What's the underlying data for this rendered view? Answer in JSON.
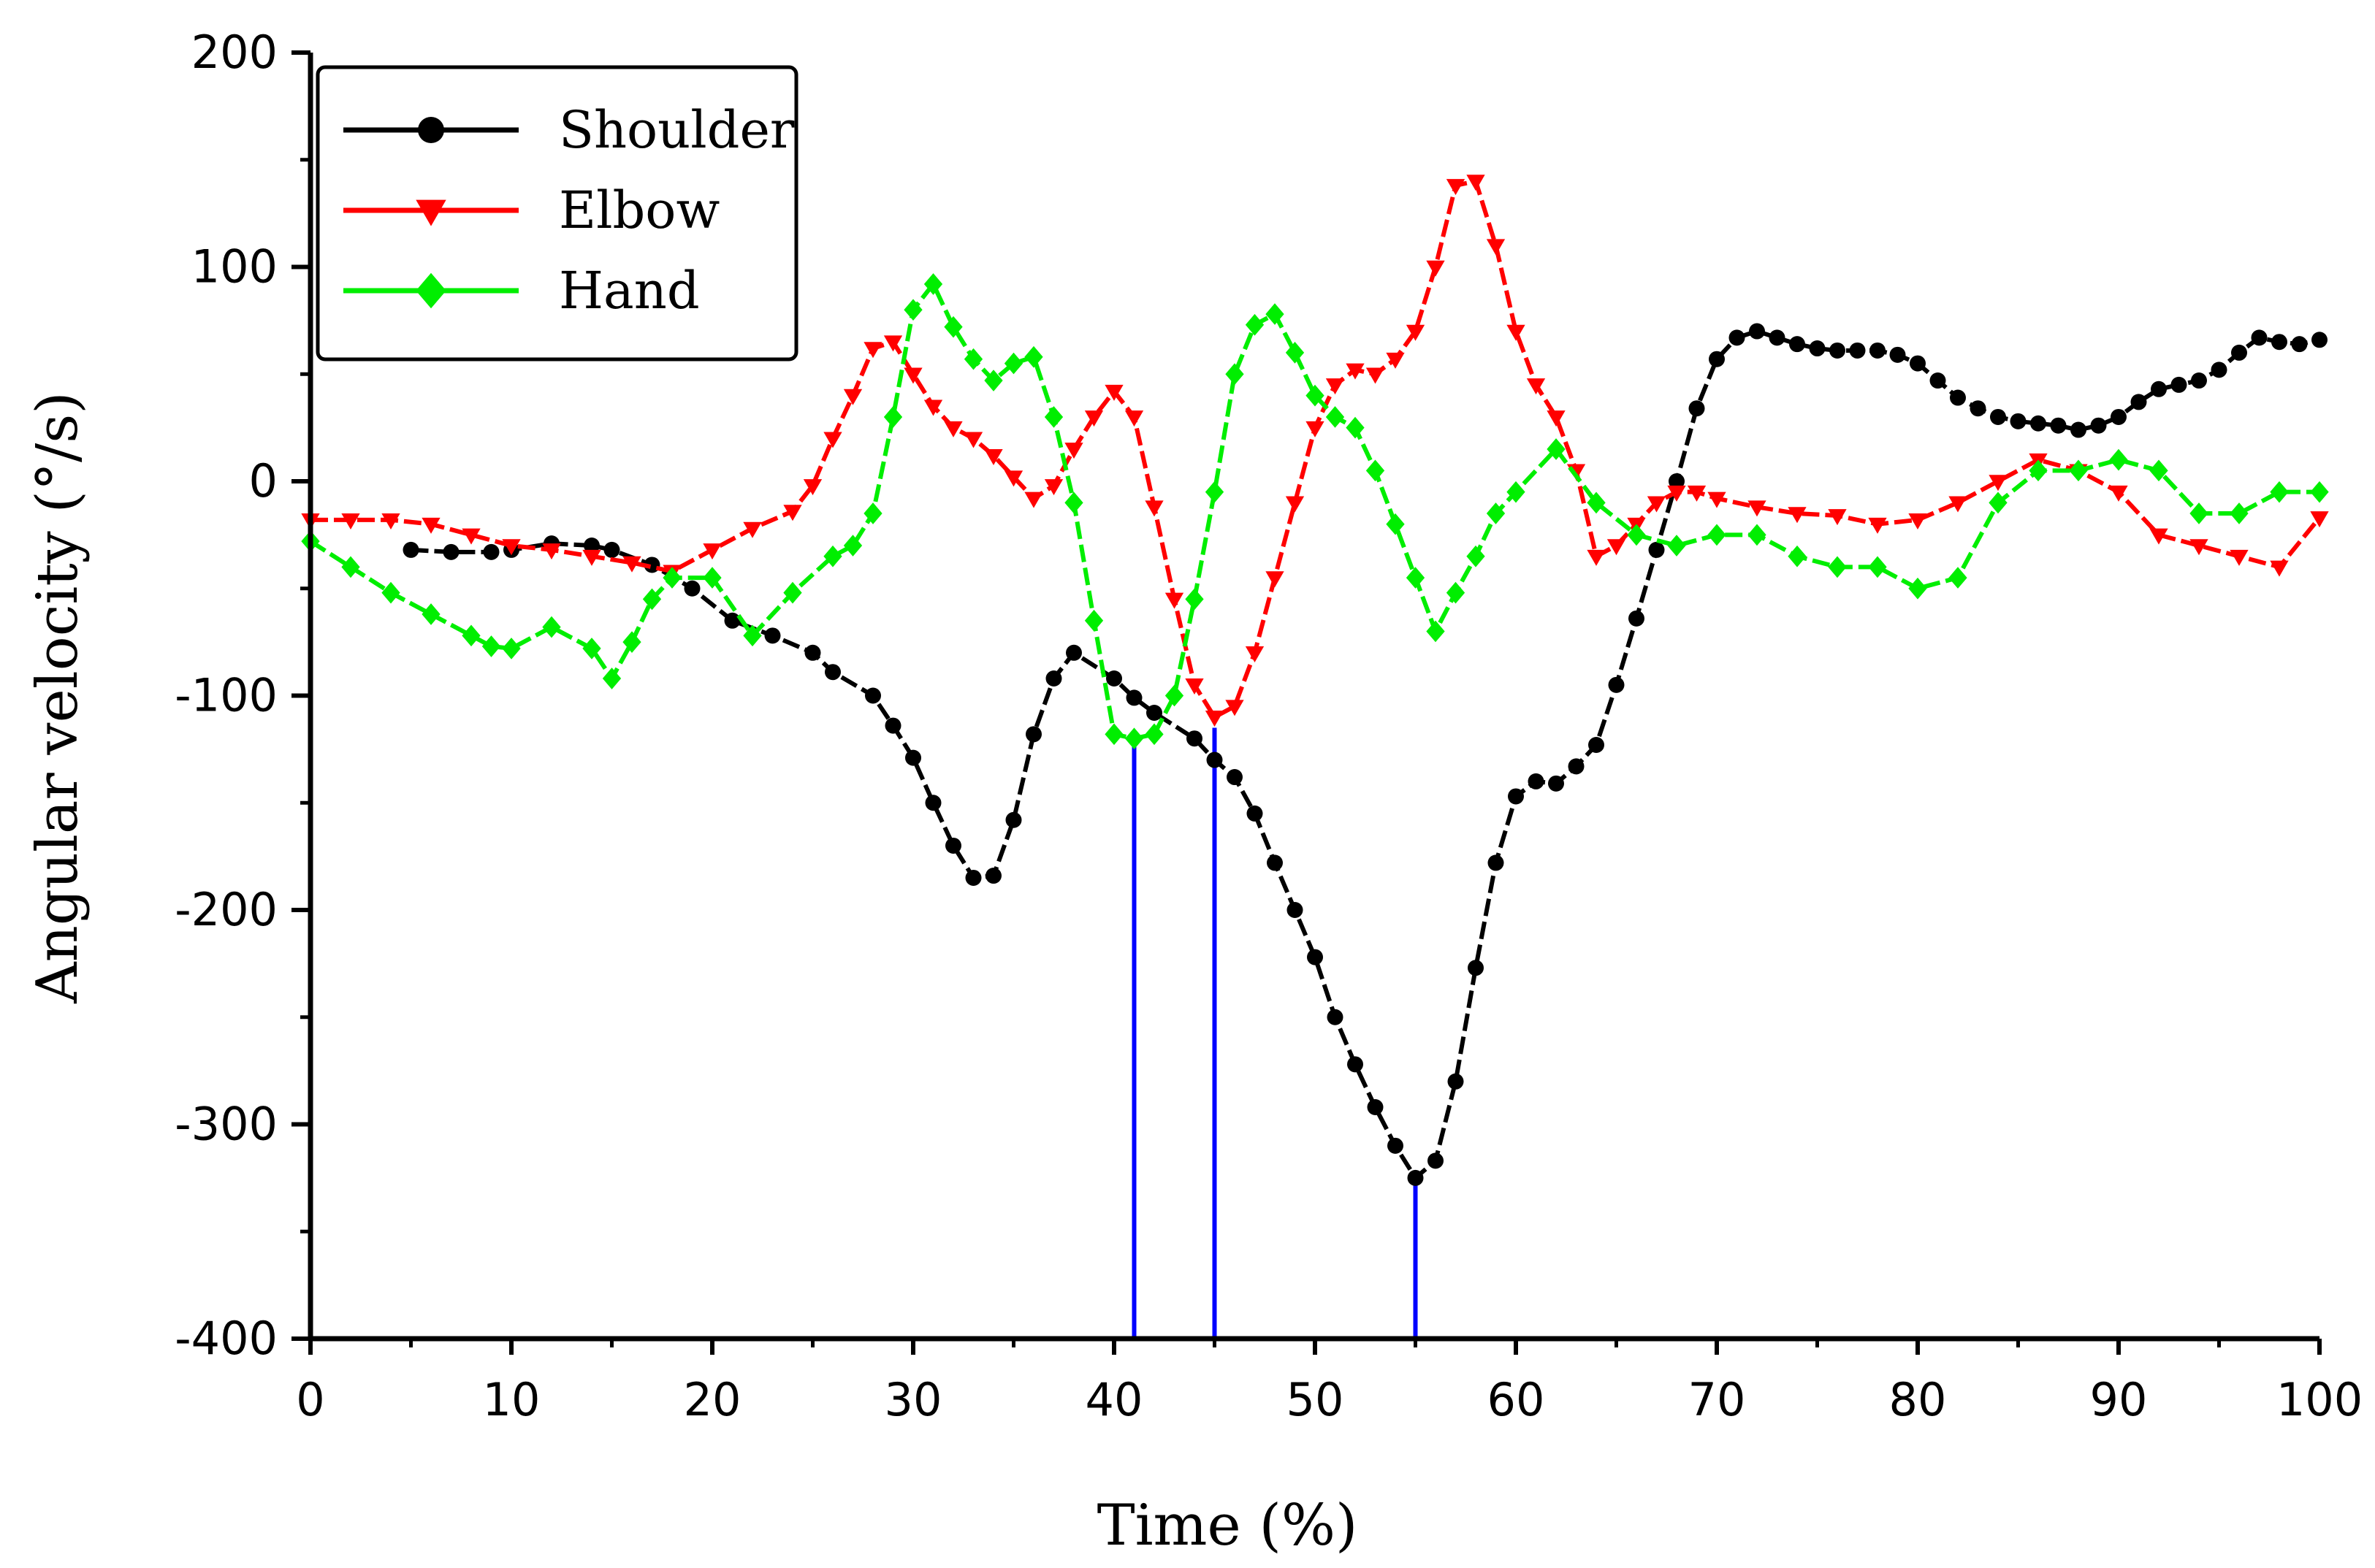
{
  "chart_data": {
    "type": "line",
    "title": "",
    "xlabel": "Time (%)",
    "ylabel": "Angular velocity (°/s)",
    "xlim": [
      0,
      100
    ],
    "ylim": [
      -400,
      200
    ],
    "xticks": [
      0,
      10,
      20,
      30,
      40,
      50,
      60,
      70,
      80,
      90,
      100
    ],
    "yticks": [
      200,
      100,
      0,
      -100,
      -200,
      -300,
      -400
    ],
    "xtick_labels": [
      "0",
      "10",
      "20",
      "30",
      "40",
      "50",
      "60",
      "70",
      "80",
      "90",
      "100"
    ],
    "ytick_labels": [
      "200",
      "100",
      "0",
      "-100",
      "-200",
      "-300",
      "-400"
    ],
    "grid": false,
    "legend_position": "top-left",
    "series": [
      {
        "name": "Shoulder",
        "color": "#000000",
        "marker": "circle",
        "x": [
          5,
          7,
          9,
          10,
          12,
          14,
          15,
          17,
          19,
          21,
          23,
          25,
          26,
          28,
          29,
          30,
          31,
          32,
          33,
          34,
          35,
          36,
          37,
          38,
          40,
          41,
          42,
          44,
          45,
          46,
          47,
          48,
          49,
          50,
          51,
          52,
          53,
          54,
          55,
          56,
          57,
          58,
          59,
          60,
          61,
          62,
          63,
          64,
          65,
          66,
          67,
          68,
          69,
          70,
          71,
          72,
          73,
          74,
          75,
          76,
          77,
          78,
          79,
          80,
          81,
          82,
          83,
          84,
          85,
          86,
          87,
          88,
          89,
          90,
          91,
          92,
          93,
          94,
          95,
          96,
          97,
          98,
          99,
          100
        ],
        "values": [
          -32,
          -33,
          -33,
          -32,
          -29,
          -30,
          -32,
          -39,
          -50,
          -65,
          -72,
          -80,
          -89,
          -100,
          -114,
          -129,
          -150,
          -170,
          -185,
          -184,
          -158,
          -118,
          -92,
          -80,
          -92,
          -101,
          -108,
          -120,
          -130,
          -138,
          -155,
          -178,
          -200,
          -222,
          -250,
          -272,
          -292,
          -310,
          -325,
          -317,
          -280,
          -227,
          -178,
          -147,
          -140,
          -141,
          -133,
          -123,
          -95,
          -64,
          -32,
          0,
          34,
          57,
          67,
          70,
          67,
          64,
          62,
          61,
          61,
          61,
          59,
          55,
          47,
          39,
          34,
          30,
          28,
          27,
          26,
          24,
          26,
          30,
          37,
          43,
          45,
          47,
          52,
          60,
          67,
          65,
          64,
          66
        ]
      },
      {
        "name": "Elbow",
        "color": "#ff0000",
        "marker": "triangle-down",
        "x": [
          0,
          2,
          4,
          6,
          8,
          10,
          12,
          14,
          16,
          18,
          20,
          22,
          24,
          25,
          26,
          27,
          28,
          29,
          30,
          31,
          32,
          33,
          34,
          35,
          36,
          37,
          38,
          39,
          40,
          41,
          42,
          43,
          44,
          45,
          46,
          47,
          48,
          49,
          50,
          51,
          52,
          53,
          54,
          55,
          56,
          57,
          58,
          59,
          60,
          61,
          62,
          63,
          64,
          65,
          66,
          67,
          68,
          69,
          70,
          72,
          74,
          76,
          78,
          80,
          82,
          84,
          86,
          88,
          90,
          92,
          94,
          96,
          98,
          100
        ],
        "values": [
          -18,
          -18,
          -18,
          -20,
          -25,
          -30,
          -32,
          -35,
          -38,
          -42,
          -32,
          -22,
          -14,
          -2,
          20,
          40,
          62,
          65,
          50,
          35,
          25,
          20,
          12,
          2,
          -8,
          -2,
          15,
          30,
          42,
          30,
          -12,
          -55,
          -95,
          -110,
          -105,
          -80,
          -45,
          -10,
          25,
          45,
          52,
          50,
          57,
          70,
          100,
          138,
          140,
          110,
          70,
          45,
          30,
          5,
          -35,
          -30,
          -20,
          -10,
          -5,
          -5,
          -8,
          -12,
          -15,
          -16,
          -20,
          -18,
          -10,
          0,
          10,
          5,
          -5,
          -25,
          -30,
          -35,
          -40,
          -17
        ]
      },
      {
        "name": "Hand",
        "color": "#00ee00",
        "marker": "diamond",
        "x": [
          0,
          2,
          4,
          6,
          8,
          9,
          10,
          12,
          14,
          15,
          16,
          17,
          18,
          20,
          22,
          24,
          26,
          27,
          28,
          29,
          30,
          31,
          32,
          33,
          34,
          35,
          36,
          37,
          38,
          39,
          40,
          41,
          42,
          43,
          44,
          45,
          46,
          47,
          48,
          49,
          50,
          51,
          52,
          53,
          54,
          55,
          56,
          57,
          58,
          59,
          60,
          62,
          64,
          66,
          68,
          70,
          72,
          74,
          76,
          78,
          80,
          82,
          84,
          86,
          88,
          90,
          92,
          94,
          96,
          98,
          100
        ],
        "values": [
          -28,
          -40,
          -52,
          -62,
          -72,
          -77,
          -78,
          -68,
          -78,
          -92,
          -75,
          -55,
          -45,
          -45,
          -72,
          -52,
          -35,
          -30,
          -15,
          30,
          80,
          92,
          72,
          57,
          47,
          55,
          58,
          30,
          -10,
          -65,
          -118,
          -120,
          -118,
          -100,
          -55,
          -5,
          50,
          73,
          78,
          60,
          40,
          30,
          25,
          5,
          -20,
          -45,
          -70,
          -52,
          -35,
          -15,
          -5,
          15,
          -10,
          -25,
          -30,
          -25,
          -25,
          -35,
          -40,
          -40,
          -50,
          -45,
          -10,
          5,
          5,
          10,
          5,
          -15,
          -15,
          -5,
          -5
        ]
      }
    ],
    "vertical_markers": [
      {
        "x": 41,
        "y_top": -120,
        "color": "#0000ff"
      },
      {
        "x": 45,
        "y_top": -115,
        "color": "#0000ff"
      },
      {
        "x": 55,
        "y_top": -322,
        "color": "#0000ff"
      }
    ]
  }
}
